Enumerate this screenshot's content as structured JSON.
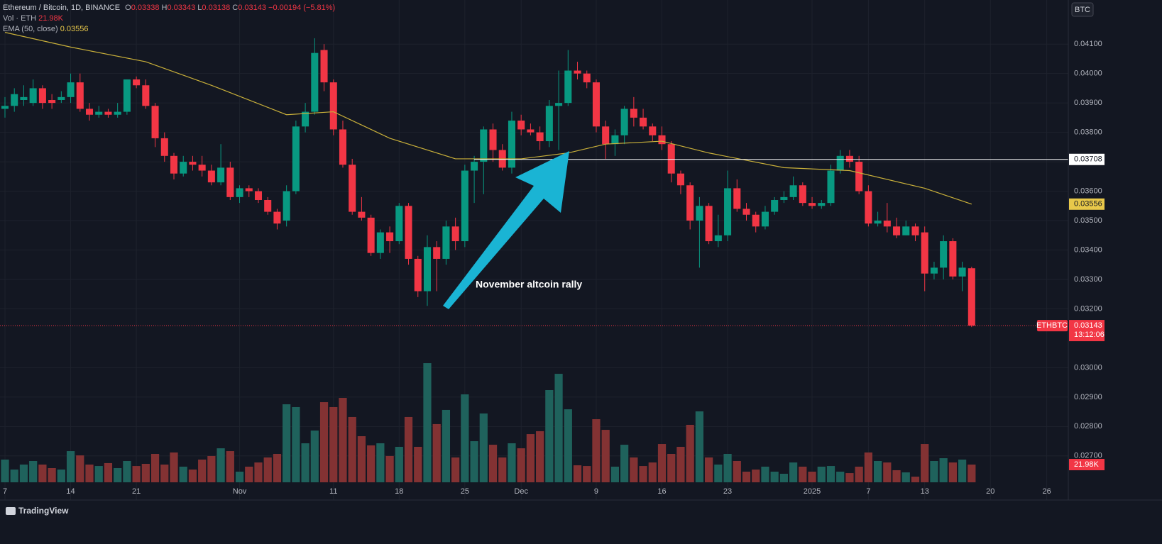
{
  "chart_data": {
    "type": "candlestick",
    "title": "Ethereum / Bitcoin, 1D, BINANCE",
    "ohlc_labels": [
      "O",
      "H",
      "L",
      "C"
    ],
    "change_label": "−0.00194 (−5.81%)",
    "currency": "BTC",
    "symbol": "ETHBTC",
    "countdown": "13:12:06",
    "annotation": "November altcoin rally",
    "brand": "TradingView",
    "up_color": "#089981",
    "down_color": "#f23645",
    "grid": true,
    "xlim": [
      -0.53,
      113.3
    ],
    "ylim": [
      0.0255,
      0.0425
    ],
    "yticks": [
      {
        "value": 0.041,
        "label": "0.04100"
      },
      {
        "value": 0.04,
        "label": "0.04000"
      },
      {
        "value": 0.039,
        "label": "0.03900"
      },
      {
        "value": 0.038,
        "label": "0.03800"
      },
      {
        "value": 0.037,
        "label": "0.03700"
      },
      {
        "value": 0.036,
        "label": "0.03600"
      },
      {
        "value": 0.035,
        "label": "0.03500"
      },
      {
        "value": 0.034,
        "label": "0.03400"
      },
      {
        "value": 0.033,
        "label": "0.03300"
      },
      {
        "value": 0.032,
        "label": "0.03200"
      },
      {
        "value": 0.03,
        "label": "0.03000"
      },
      {
        "value": 0.029,
        "label": "0.02900"
      },
      {
        "value": 0.028,
        "label": "0.02800"
      },
      {
        "value": 0.027,
        "label": "0.02700"
      }
    ],
    "xticks": [
      {
        "value": 0,
        "label": "7"
      },
      {
        "value": 7,
        "label": "14"
      },
      {
        "value": 14,
        "label": "21"
      },
      {
        "value": 25,
        "label": "Nov"
      },
      {
        "value": 35,
        "label": "11"
      },
      {
        "value": 42,
        "label": "18"
      },
      {
        "value": 49,
        "label": "25"
      },
      {
        "value": 55,
        "label": "Dec"
      },
      {
        "value": 63,
        "label": "9"
      },
      {
        "value": 70,
        "label": "16"
      },
      {
        "value": 77,
        "label": "23"
      },
      {
        "value": 86,
        "label": "2025"
      },
      {
        "value": 92,
        "label": "7"
      },
      {
        "value": 98,
        "label": "13"
      },
      {
        "value": 105,
        "label": "20"
      },
      {
        "value": 111,
        "label": "26"
      }
    ],
    "open": [
      0.0388,
      0.0389,
      0.0391,
      0.039,
      0.0395,
      0.0391,
      0.0391,
      0.0392,
      0.0397,
      0.0388,
      0.0386,
      0.0387,
      0.0386,
      0.0387,
      0.0398,
      0.0396,
      0.0389,
      0.0378,
      0.0372,
      0.0366,
      0.037,
      0.0369,
      0.0367,
      0.0363,
      0.0368,
      0.0358,
      0.0361,
      0.036,
      0.0357,
      0.0353,
      0.035,
      0.036,
      0.0382,
      0.0387,
      0.0408,
      0.0397,
      0.0381,
      0.0369,
      0.0353,
      0.0351,
      0.0339,
      0.0346,
      0.0343,
      0.0355,
      0.0337,
      0.0326,
      0.0341,
      0.0337,
      0.0348,
      0.0343,
      0.0367,
      0.037,
      0.0381,
      0.0374,
      0.0368,
      0.0384,
      0.0381,
      0.038,
      0.0377,
      0.0389,
      0.039,
      0.0401,
      0.04,
      0.0397,
      0.0382,
      0.0376,
      0.0379,
      0.0388,
      0.0385,
      0.0382,
      0.0379,
      0.0376,
      0.0366,
      0.0362,
      0.035,
      0.0355,
      0.0343,
      0.0345,
      0.0361,
      0.0354,
      0.0352,
      0.0348,
      0.0353,
      0.0357,
      0.0358,
      0.0362,
      0.0356,
      0.0355,
      0.0356,
      0.0367,
      0.0372,
      0.037,
      0.036,
      0.0349,
      0.035,
      0.0348,
      0.0345,
      0.0348,
      0.0346,
      0.0332,
      0.0334,
      0.0343,
      0.0331,
      0.03338
    ],
    "high": [
      0.0392,
      0.0395,
      0.0396,
      0.0398,
      0.0396,
      0.0393,
      0.0394,
      0.04,
      0.04,
      0.039,
      0.0389,
      0.0388,
      0.039,
      0.0398,
      0.0399,
      0.0398,
      0.039,
      0.038,
      0.0373,
      0.0372,
      0.0372,
      0.0372,
      0.0369,
      0.0376,
      0.037,
      0.0362,
      0.0362,
      0.0361,
      0.0358,
      0.0354,
      0.0362,
      0.0384,
      0.039,
      0.0412,
      0.041,
      0.0398,
      0.0384,
      0.0371,
      0.0358,
      0.0352,
      0.0347,
      0.0348,
      0.0356,
      0.0356,
      0.0338,
      0.0345,
      0.0343,
      0.035,
      0.0351,
      0.0369,
      0.0372,
      0.0382,
      0.0383,
      0.0376,
      0.0387,
      0.0386,
      0.0383,
      0.0382,
      0.0391,
      0.0401,
      0.0408,
      0.0404,
      0.0401,
      0.0398,
      0.0384,
      0.0381,
      0.0389,
      0.0392,
      0.0388,
      0.0383,
      0.0382,
      0.0377,
      0.0367,
      0.0363,
      0.0358,
      0.0356,
      0.0352,
      0.0367,
      0.0364,
      0.0356,
      0.0353,
      0.0355,
      0.0358,
      0.036,
      0.0365,
      0.0363,
      0.0358,
      0.0357,
      0.0369,
      0.0374,
      0.0374,
      0.0372,
      0.0362,
      0.0353,
      0.0356,
      0.0351,
      0.035,
      0.0349,
      0.0348,
      0.0336,
      0.0345,
      0.0344,
      0.0336,
      0.03343
    ],
    "low": [
      0.0385,
      0.0387,
      0.0389,
      0.0389,
      0.0388,
      0.0388,
      0.039,
      0.039,
      0.0387,
      0.0384,
      0.0385,
      0.0385,
      0.0385,
      0.0386,
      0.0395,
      0.0388,
      0.0375,
      0.037,
      0.0364,
      0.0365,
      0.0367,
      0.0365,
      0.0362,
      0.0362,
      0.0357,
      0.0356,
      0.0358,
      0.0356,
      0.0352,
      0.0347,
      0.0348,
      0.0359,
      0.038,
      0.0386,
      0.0394,
      0.0379,
      0.0368,
      0.0352,
      0.035,
      0.0338,
      0.0337,
      0.0339,
      0.0342,
      0.0335,
      0.0324,
      0.0321,
      0.0326,
      0.0335,
      0.034,
      0.0341,
      0.0356,
      0.0359,
      0.037,
      0.0367,
      0.0366,
      0.0379,
      0.0379,
      0.0374,
      0.0375,
      0.0374,
      0.0389,
      0.0398,
      0.0395,
      0.038,
      0.0371,
      0.0372,
      0.0376,
      0.0382,
      0.0381,
      0.0377,
      0.0374,
      0.0363,
      0.0359,
      0.0347,
      0.0334,
      0.0342,
      0.0341,
      0.0343,
      0.0353,
      0.035,
      0.0346,
      0.0347,
      0.0352,
      0.0356,
      0.0357,
      0.0355,
      0.0354,
      0.0354,
      0.0355,
      0.0366,
      0.0368,
      0.0359,
      0.0348,
      0.0348,
      0.0346,
      0.0344,
      0.0345,
      0.0343,
      0.0326,
      0.033,
      0.033,
      0.033,
      0.0326,
      0.03138
    ],
    "close": [
      0.0389,
      0.0393,
      0.0392,
      0.0395,
      0.039,
      0.039,
      0.0392,
      0.0397,
      0.0388,
      0.0386,
      0.0387,
      0.0386,
      0.0387,
      0.0398,
      0.0396,
      0.0389,
      0.0378,
      0.0372,
      0.0366,
      0.037,
      0.0369,
      0.0367,
      0.0363,
      0.0368,
      0.0358,
      0.0361,
      0.036,
      0.0357,
      0.0353,
      0.0349,
      0.036,
      0.0382,
      0.0387,
      0.0407,
      0.0397,
      0.0381,
      0.0369,
      0.0353,
      0.0351,
      0.0339,
      0.0346,
      0.0343,
      0.0355,
      0.0337,
      0.0326,
      0.0341,
      0.0337,
      0.0348,
      0.0343,
      0.0367,
      0.037,
      0.0381,
      0.0374,
      0.0368,
      0.0384,
      0.0381,
      0.038,
      0.0377,
      0.0389,
      0.039,
      0.0401,
      0.04,
      0.0397,
      0.0382,
      0.0376,
      0.0379,
      0.0388,
      0.0385,
      0.0382,
      0.0379,
      0.0376,
      0.0366,
      0.0362,
      0.035,
      0.0355,
      0.0343,
      0.0345,
      0.0361,
      0.0354,
      0.0352,
      0.0348,
      0.0353,
      0.0357,
      0.0358,
      0.0362,
      0.0356,
      0.0355,
      0.0356,
      0.0367,
      0.0372,
      0.037,
      0.036,
      0.0349,
      0.035,
      0.0348,
      0.0345,
      0.0348,
      0.0345,
      0.0332,
      0.0334,
      0.0343,
      0.0331,
      0.0334,
      0.03143
    ],
    "volume": {
      "name": "Vol · ETH",
      "up_color": "#1f625c",
      "down_color": "#833233",
      "last_label": "21.98K",
      "values": [
        28.2,
        15.8,
        22,
        26.4,
        22,
        17.6,
        15.8,
        38.7,
        33.4,
        22,
        20.2,
        23.8,
        17.6,
        26.4,
        20.2,
        22.9,
        35.2,
        22,
        37,
        19.4,
        15.8,
        28.2,
        32.6,
        42.2,
        38.7,
        13.2,
        19.4,
        24.6,
        30.8,
        35.2,
        96.8,
        93.3,
        48.4,
        64.2,
        99.4,
        93.3,
        104.7,
        81,
        57.2,
        45.8,
        48.4,
        32.6,
        44,
        81,
        44,
        147.8,
        72.2,
        89.8,
        30.8,
        109.1,
        51,
        85.4,
        46.6,
        30.8,
        48.4,
        42.2,
        59.8,
        63.4,
        114.4,
        134.6,
        90.6,
        21.1,
        20.2,
        78.3,
        65.1,
        19.4,
        46.6,
        30.8,
        20.2,
        24.6,
        47.5,
        35.2,
        44,
        71.3,
        88,
        30.8,
        22,
        35.2,
        26.4,
        13.2,
        15.8,
        19.4,
        13.2,
        10.6,
        24.6,
        19.4,
        13.2,
        19.4,
        20.2,
        13.2,
        11.4,
        19.4,
        37,
        26.4,
        24.6,
        15,
        12.3,
        7,
        47.5,
        26.4,
        29.9,
        24.6,
        28.2,
        21.98
      ]
    },
    "ema": {
      "name": "EMA (50, close)",
      "color": "#c9b03a",
      "x": [
        0,
        7,
        15,
        22,
        30,
        35,
        41,
        48,
        55,
        60,
        64,
        70,
        75,
        83,
        90,
        98,
        103
      ],
      "values": [
        0.0414,
        0.0409,
        0.0404,
        0.0396,
        0.0386,
        0.0387,
        0.0378,
        0.0371,
        0.0371,
        0.0373,
        0.0376,
        0.0377,
        0.0373,
        0.0368,
        0.0367,
        0.0361,
        0.03556
      ]
    },
    "hline": 0.03708
  }
}
